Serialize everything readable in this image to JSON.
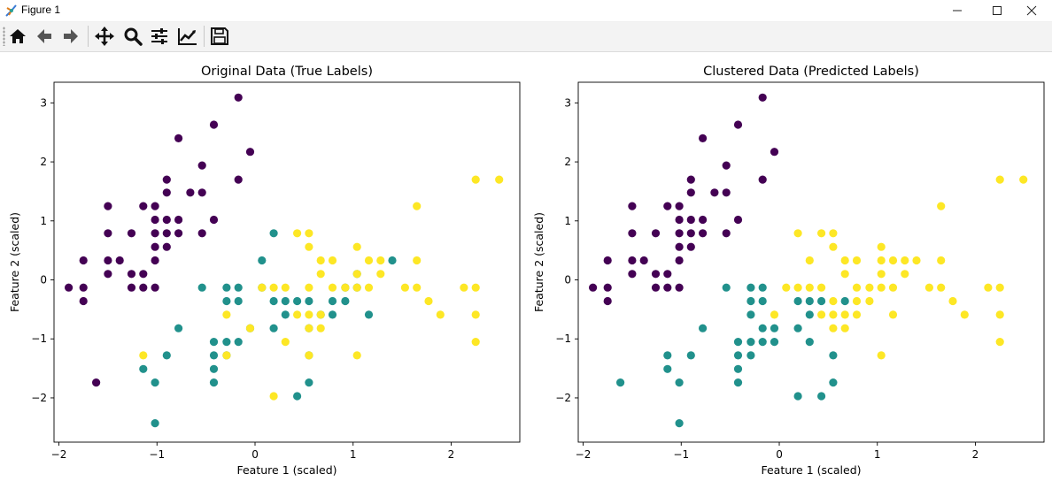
{
  "window": {
    "title": "Figure 1",
    "controls": {
      "minimize": "minimize-icon",
      "maximize": "maximize-icon",
      "close": "close-icon"
    }
  },
  "toolbar": {
    "tools": [
      {
        "name": "home",
        "icon": "home-icon"
      },
      {
        "name": "back",
        "icon": "arrow-left-icon"
      },
      {
        "name": "forward",
        "icon": "arrow-right-icon"
      },
      {
        "name": "pan",
        "icon": "move-icon"
      },
      {
        "name": "zoom",
        "icon": "magnifier-icon"
      },
      {
        "name": "configure-subplots",
        "icon": "sliders-icon"
      },
      {
        "name": "edit-axis",
        "icon": "line-chart-icon"
      },
      {
        "name": "save",
        "icon": "floppy-disk-icon"
      }
    ]
  },
  "colors": {
    "class0": "#440154",
    "class1": "#21918c",
    "class2": "#fde725"
  },
  "chart_data": [
    {
      "type": "scatter",
      "title": "Original Data (True Labels)",
      "xlabel": "Feature 1 (scaled)",
      "ylabel": "Feature 2 (scaled)",
      "xlim": [
        -2.05,
        2.7
      ],
      "ylim": [
        -2.75,
        3.35
      ],
      "xticks": [
        -2,
        -1,
        0,
        1,
        2
      ],
      "yticks": [
        -2,
        -1,
        0,
        1,
        2,
        3
      ],
      "grid": false,
      "points": [
        [
          -1.9,
          -0.13,
          0
        ],
        [
          -1.75,
          -0.13,
          0
        ],
        [
          -1.75,
          0.33,
          0
        ],
        [
          -1.75,
          -0.36,
          0
        ],
        [
          -1.5,
          1.25,
          0
        ],
        [
          -1.5,
          0.79,
          0
        ],
        [
          -1.5,
          0.33,
          0
        ],
        [
          -1.5,
          0.1,
          0
        ],
        [
          -1.38,
          0.33,
          0
        ],
        [
          -1.26,
          0.79,
          0
        ],
        [
          -1.26,
          0.1,
          0
        ],
        [
          -1.26,
          -0.13,
          0
        ],
        [
          -1.14,
          1.25,
          0
        ],
        [
          -1.14,
          0.1,
          0
        ],
        [
          -1.14,
          -0.13,
          0
        ],
        [
          -1.02,
          1.25,
          0
        ],
        [
          -1.02,
          1.02,
          0
        ],
        [
          -1.02,
          0.79,
          0
        ],
        [
          -1.02,
          0.56,
          0
        ],
        [
          -1.02,
          0.33,
          0
        ],
        [
          -1.02,
          -0.13,
          0
        ],
        [
          -0.9,
          1.7,
          0
        ],
        [
          -0.9,
          1.48,
          0
        ],
        [
          -0.9,
          1.02,
          0
        ],
        [
          -0.9,
          0.79,
          0
        ],
        [
          -0.9,
          0.56,
          0
        ],
        [
          -0.78,
          2.4,
          0
        ],
        [
          -0.78,
          1.02,
          0
        ],
        [
          -0.78,
          0.79,
          0
        ],
        [
          -0.66,
          1.48,
          0
        ],
        [
          -0.54,
          1.94,
          0
        ],
        [
          -0.54,
          1.48,
          0
        ],
        [
          -0.54,
          0.79,
          0
        ],
        [
          -0.42,
          2.63,
          0
        ],
        [
          -0.42,
          1.02,
          0
        ],
        [
          -0.17,
          3.09,
          0
        ],
        [
          -0.17,
          1.7,
          0
        ],
        [
          -0.05,
          2.17,
          0
        ],
        [
          -1.62,
          -1.74,
          0
        ],
        [
          -1.14,
          -1.51,
          1
        ],
        [
          -1.02,
          -1.74,
          1
        ],
        [
          -1.02,
          -2.43,
          1
        ],
        [
          -0.9,
          -1.28,
          1
        ],
        [
          -0.78,
          -0.82,
          1
        ],
        [
          -0.54,
          -0.13,
          1
        ],
        [
          -0.42,
          -1.05,
          1
        ],
        [
          -0.42,
          -1.28,
          1
        ],
        [
          -0.42,
          -1.51,
          1
        ],
        [
          -0.42,
          -1.74,
          1
        ],
        [
          -0.29,
          -0.13,
          1
        ],
        [
          -0.29,
          -0.36,
          1
        ],
        [
          -0.29,
          -1.05,
          1
        ],
        [
          -0.29,
          -1.28,
          1
        ],
        [
          -0.17,
          -0.13,
          1
        ],
        [
          -0.17,
          -0.36,
          1
        ],
        [
          -0.17,
          -1.05,
          1
        ],
        [
          -0.05,
          -0.82,
          1
        ],
        [
          0.07,
          0.33,
          1
        ],
        [
          0.07,
          -0.13,
          1
        ],
        [
          0.19,
          0.79,
          1
        ],
        [
          0.19,
          -0.36,
          1
        ],
        [
          0.19,
          -0.82,
          1
        ],
        [
          0.31,
          -0.36,
          1
        ],
        [
          0.31,
          -0.59,
          1
        ],
        [
          0.43,
          -0.36,
          1
        ],
        [
          0.43,
          -1.97,
          1
        ],
        [
          0.55,
          -0.36,
          1
        ],
        [
          0.55,
          -0.82,
          1
        ],
        [
          0.55,
          -1.28,
          1
        ],
        [
          0.55,
          -1.74,
          1
        ],
        [
          0.67,
          -0.59,
          1
        ],
        [
          0.79,
          -0.36,
          1
        ],
        [
          0.79,
          -0.59,
          1
        ],
        [
          0.92,
          -0.13,
          1
        ],
        [
          0.92,
          -0.36,
          1
        ],
        [
          1.04,
          -0.13,
          1
        ],
        [
          1.04,
          0.1,
          1
        ],
        [
          1.16,
          -0.59,
          1
        ],
        [
          1.4,
          0.33,
          1
        ],
        [
          -1.14,
          -1.28,
          2
        ],
        [
          -0.29,
          -0.59,
          2
        ],
        [
          -0.29,
          -1.28,
          2
        ],
        [
          -0.05,
          -0.82,
          2
        ],
        [
          0.07,
          -0.13,
          2
        ],
        [
          0.19,
          -0.13,
          2
        ],
        [
          0.19,
          -1.97,
          2
        ],
        [
          0.31,
          -0.13,
          2
        ],
        [
          0.31,
          -1.05,
          2
        ],
        [
          0.43,
          0.79,
          2
        ],
        [
          0.43,
          -0.59,
          2
        ],
        [
          0.55,
          0.79,
          2
        ],
        [
          0.55,
          0.56,
          2
        ],
        [
          0.55,
          -0.13,
          2
        ],
        [
          0.55,
          -0.59,
          2
        ],
        [
          0.55,
          -0.82,
          2
        ],
        [
          0.55,
          -1.28,
          2
        ],
        [
          0.67,
          0.33,
          2
        ],
        [
          0.67,
          0.1,
          2
        ],
        [
          0.67,
          -0.59,
          2
        ],
        [
          0.67,
          -0.82,
          2
        ],
        [
          0.79,
          0.33,
          2
        ],
        [
          0.79,
          -0.13,
          2
        ],
        [
          0.92,
          -0.13,
          2
        ],
        [
          1.04,
          0.56,
          2
        ],
        [
          1.04,
          0.1,
          2
        ],
        [
          1.04,
          -0.13,
          2
        ],
        [
          1.04,
          -1.28,
          2
        ],
        [
          1.16,
          0.33,
          2
        ],
        [
          1.16,
          -0.13,
          2
        ],
        [
          1.28,
          0.33,
          2
        ],
        [
          1.28,
          0.1,
          2
        ],
        [
          1.53,
          -0.13,
          2
        ],
        [
          1.65,
          1.25,
          2
        ],
        [
          1.65,
          0.33,
          2
        ],
        [
          1.65,
          -0.13,
          2
        ],
        [
          1.77,
          -0.36,
          2
        ],
        [
          1.89,
          -0.59,
          2
        ],
        [
          2.13,
          -0.13,
          2
        ],
        [
          2.25,
          1.7,
          2
        ],
        [
          2.25,
          -0.13,
          2
        ],
        [
          2.25,
          -0.59,
          2
        ],
        [
          2.25,
          -1.05,
          2
        ],
        [
          2.49,
          1.7,
          2
        ]
      ]
    },
    {
      "type": "scatter",
      "title": "Clustered Data (Predicted Labels)",
      "xlabel": "Feature 1 (scaled)",
      "ylabel": "Feature 2 (scaled)",
      "xlim": [
        -2.05,
        2.7
      ],
      "ylim": [
        -2.75,
        3.35
      ],
      "xticks": [
        -2,
        -1,
        0,
        1,
        2
      ],
      "yticks": [
        -2,
        -1,
        0,
        1,
        2,
        3
      ],
      "grid": false,
      "points": [
        [
          -1.9,
          -0.13,
          0
        ],
        [
          -1.75,
          -0.13,
          0
        ],
        [
          -1.75,
          0.33,
          0
        ],
        [
          -1.75,
          -0.36,
          0
        ],
        [
          -1.5,
          1.25,
          0
        ],
        [
          -1.5,
          0.79,
          0
        ],
        [
          -1.5,
          0.33,
          0
        ],
        [
          -1.5,
          0.1,
          0
        ],
        [
          -1.38,
          0.33,
          0
        ],
        [
          -1.26,
          0.79,
          0
        ],
        [
          -1.26,
          0.1,
          0
        ],
        [
          -1.26,
          -0.13,
          0
        ],
        [
          -1.14,
          1.25,
          0
        ],
        [
          -1.14,
          0.1,
          0
        ],
        [
          -1.14,
          -0.13,
          0
        ],
        [
          -1.02,
          1.25,
          0
        ],
        [
          -1.02,
          1.02,
          0
        ],
        [
          -1.02,
          0.79,
          0
        ],
        [
          -1.02,
          0.56,
          0
        ],
        [
          -1.02,
          0.33,
          0
        ],
        [
          -1.02,
          -0.13,
          0
        ],
        [
          -0.9,
          1.7,
          0
        ],
        [
          -0.9,
          1.48,
          0
        ],
        [
          -0.9,
          1.02,
          0
        ],
        [
          -0.9,
          0.79,
          0
        ],
        [
          -0.9,
          0.56,
          0
        ],
        [
          -0.78,
          2.4,
          0
        ],
        [
          -0.78,
          1.02,
          0
        ],
        [
          -0.78,
          0.79,
          0
        ],
        [
          -0.66,
          1.48,
          0
        ],
        [
          -0.54,
          1.94,
          0
        ],
        [
          -0.54,
          1.48,
          0
        ],
        [
          -0.54,
          0.79,
          0
        ],
        [
          -0.42,
          2.63,
          0
        ],
        [
          -0.42,
          1.02,
          0
        ],
        [
          -0.17,
          3.09,
          0
        ],
        [
          -0.17,
          1.7,
          0
        ],
        [
          -0.05,
          2.17,
          0
        ],
        [
          -1.62,
          -1.74,
          1
        ],
        [
          -1.14,
          -1.28,
          1
        ],
        [
          -1.14,
          -1.51,
          1
        ],
        [
          -1.02,
          -1.74,
          1
        ],
        [
          -1.02,
          -2.43,
          1
        ],
        [
          -0.9,
          -1.28,
          1
        ],
        [
          -0.78,
          -0.82,
          1
        ],
        [
          -0.54,
          -0.13,
          1
        ],
        [
          -0.42,
          -1.05,
          1
        ],
        [
          -0.42,
          -1.28,
          1
        ],
        [
          -0.42,
          -1.51,
          1
        ],
        [
          -0.42,
          -1.74,
          1
        ],
        [
          -0.29,
          -0.13,
          1
        ],
        [
          -0.29,
          -0.36,
          1
        ],
        [
          -0.29,
          -0.59,
          1
        ],
        [
          -0.29,
          -1.05,
          1
        ],
        [
          -0.29,
          -1.28,
          1
        ],
        [
          -0.17,
          -0.13,
          1
        ],
        [
          -0.17,
          -0.36,
          1
        ],
        [
          -0.17,
          -0.82,
          1
        ],
        [
          -0.17,
          -1.05,
          1
        ],
        [
          -0.05,
          -0.82,
          1
        ],
        [
          -0.05,
          -1.05,
          1
        ],
        [
          0.19,
          -0.36,
          1
        ],
        [
          0.19,
          -0.82,
          1
        ],
        [
          0.19,
          -1.97,
          1
        ],
        [
          0.31,
          -0.36,
          1
        ],
        [
          0.31,
          -0.59,
          1
        ],
        [
          0.31,
          -1.05,
          1
        ],
        [
          0.43,
          -0.36,
          1
        ],
        [
          0.43,
          -1.97,
          1
        ],
        [
          0.55,
          -1.28,
          1
        ],
        [
          0.55,
          -1.74,
          1
        ],
        [
          0.67,
          -0.36,
          1
        ],
        [
          -0.05,
          -0.59,
          2
        ],
        [
          0.07,
          -0.13,
          2
        ],
        [
          0.19,
          0.79,
          2
        ],
        [
          0.19,
          -0.13,
          2
        ],
        [
          0.31,
          0.33,
          2
        ],
        [
          0.31,
          -0.13,
          2
        ],
        [
          0.43,
          0.79,
          2
        ],
        [
          0.43,
          -0.13,
          2
        ],
        [
          0.43,
          -0.59,
          2
        ],
        [
          0.55,
          0.79,
          2
        ],
        [
          0.55,
          0.56,
          2
        ],
        [
          0.55,
          -0.36,
          2
        ],
        [
          0.55,
          -0.59,
          2
        ],
        [
          0.55,
          -0.82,
          2
        ],
        [
          0.67,
          0.33,
          2
        ],
        [
          0.67,
          0.1,
          2
        ],
        [
          0.67,
          -0.59,
          2
        ],
        [
          0.67,
          -0.82,
          2
        ],
        [
          0.79,
          0.33,
          2
        ],
        [
          0.79,
          -0.13,
          2
        ],
        [
          0.79,
          -0.36,
          2
        ],
        [
          0.79,
          -0.59,
          2
        ],
        [
          0.92,
          -0.13,
          2
        ],
        [
          0.92,
          -0.36,
          2
        ],
        [
          1.04,
          0.56,
          2
        ],
        [
          1.04,
          0.33,
          2
        ],
        [
          1.04,
          0.1,
          2
        ],
        [
          1.04,
          -0.13,
          2
        ],
        [
          1.04,
          -1.28,
          2
        ],
        [
          1.16,
          0.33,
          2
        ],
        [
          1.16,
          -0.13,
          2
        ],
        [
          1.16,
          -0.59,
          2
        ],
        [
          1.28,
          0.33,
          2
        ],
        [
          1.28,
          0.1,
          2
        ],
        [
          1.4,
          0.33,
          2
        ],
        [
          1.53,
          -0.13,
          2
        ],
        [
          1.65,
          1.25,
          2
        ],
        [
          1.65,
          0.33,
          2
        ],
        [
          1.65,
          -0.13,
          2
        ],
        [
          1.77,
          -0.36,
          2
        ],
        [
          1.89,
          -0.59,
          2
        ],
        [
          2.13,
          -0.13,
          2
        ],
        [
          2.25,
          1.7,
          2
        ],
        [
          2.25,
          -0.13,
          2
        ],
        [
          2.25,
          -0.59,
          2
        ],
        [
          2.25,
          -1.05,
          2
        ],
        [
          2.49,
          1.7,
          2
        ]
      ]
    }
  ]
}
